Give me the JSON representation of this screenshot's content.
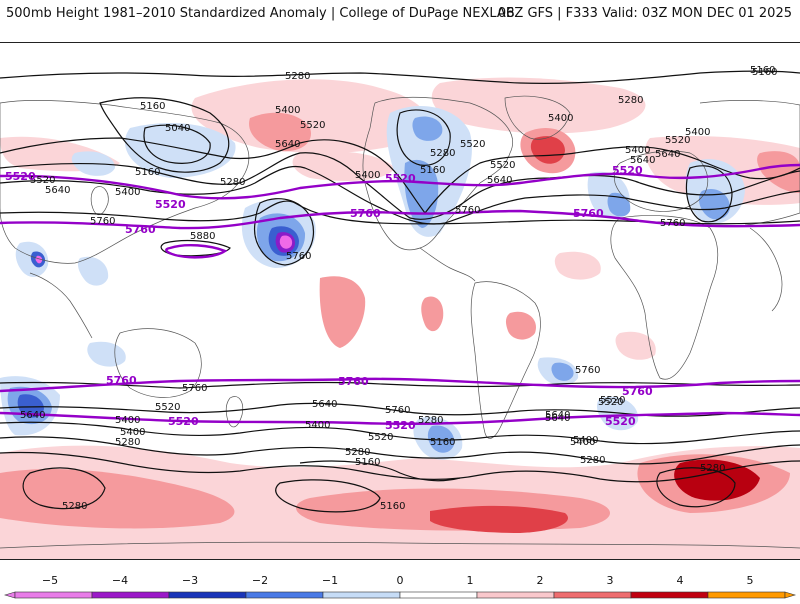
{
  "header": {
    "title_left": "500mb Height 1981–2010 Standardized Anomaly | College of DuPage NEXLAB",
    "title_right": "06Z GFS | F333 Valid: 03Z MON DEC 01 2025"
  },
  "legend": {
    "ticks": [
      "−5",
      "−4",
      "−3",
      "−2",
      "−1",
      "0",
      "1",
      "2",
      "3",
      "4",
      "5"
    ],
    "colors": [
      "#e87de8",
      "#9b18c8",
      "#1a35b8",
      "#4a7ae6",
      "#c6dcf6",
      "#ffffff",
      "#ffffff",
      "#f9c8cc",
      "#ee6d6f",
      "#c00010",
      "#ff9a00"
    ]
  },
  "map": {
    "anomaly_colors": {
      "pos1": "#fbd5d8",
      "pos2": "#f59a9d",
      "pos3": "#e04048",
      "pos4": "#b80010",
      "neg1": "#cfe0f7",
      "neg2": "#7ea6ea",
      "neg3": "#3a5fd0",
      "neg4": "#8a1cc8",
      "neg5": "#f06ae8"
    },
    "contour_labels": [
      "5280",
      "5160",
      "5160",
      "5040",
      "5400",
      "5520",
      "5640",
      "5520",
      "5640",
      "5400",
      "5160",
      "5280",
      "5760",
      "5880",
      "5760",
      "5400",
      "5520",
      "5160",
      "5280",
      "5640",
      "5520",
      "5400",
      "5400",
      "5640",
      "5520",
      "5400",
      "5640",
      "5760",
      "5280",
      "5160",
      "5760",
      "5760",
      "5640",
      "5520",
      "5400",
      "5280",
      "5640",
      "5400",
      "5520",
      "5400",
      "5280",
      "5160",
      "5760",
      "5640",
      "5520",
      "5400",
      "5280",
      "5760",
      "5640",
      "5520",
      "5400",
      "5160",
      "5280",
      "5280",
      "5160",
      "5280"
    ],
    "highlight_labels": [
      "5520",
      "5520",
      "5760",
      "5520",
      "5760",
      "5760",
      "5520",
      "5760",
      "5760",
      "5760",
      "5520",
      "5520",
      "5520"
    ]
  }
}
